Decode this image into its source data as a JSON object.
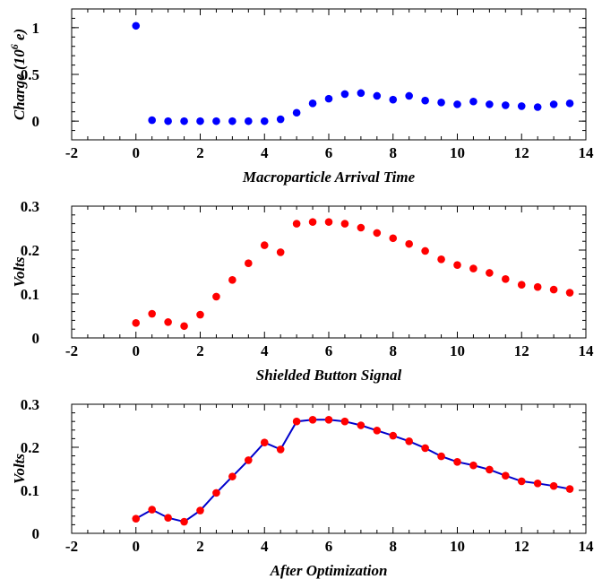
{
  "chart_data": [
    {
      "type": "scatter",
      "xlabel": "Macroparticle Arrival Time",
      "ylabel": "Charge (10",
      "ylabel_sup": "6",
      "ylabel_tail": " e)",
      "xlim": [
        -2,
        14
      ],
      "ylim": [
        -0.2,
        1.2
      ],
      "xticks": [
        -2,
        0,
        2,
        4,
        6,
        8,
        10,
        12,
        14
      ],
      "yticks": [
        0,
        0.5,
        1
      ],
      "grid": false,
      "colors": {
        "marker": "#0000ff"
      },
      "series": [
        {
          "x": [
            0,
            0.5,
            1,
            1.5,
            2,
            2.5,
            3,
            3.5,
            4,
            4.5,
            5,
            5.5,
            6,
            6.5,
            7,
            7.5,
            8,
            8.5,
            9,
            9.5,
            10,
            10.5,
            11,
            11.5,
            12,
            12.5,
            13,
            13.5
          ],
          "y": [
            1.02,
            0.01,
            0.0,
            0.0,
            0.0,
            0.0,
            0.0,
            0.0,
            0.0,
            0.02,
            0.09,
            0.19,
            0.24,
            0.29,
            0.3,
            0.27,
            0.23,
            0.27,
            0.22,
            0.2,
            0.18,
            0.21,
            0.18,
            0.17,
            0.16,
            0.15,
            0.18,
            0.19
          ]
        }
      ]
    },
    {
      "type": "scatter",
      "xlabel": "Shielded Button Signal",
      "ylabel": "Volts",
      "xlim": [
        -2,
        14
      ],
      "ylim": [
        0,
        0.3
      ],
      "xticks": [
        -2,
        0,
        2,
        4,
        6,
        8,
        10,
        12,
        14
      ],
      "yticks": [
        0,
        0.1,
        0.2,
        0.3
      ],
      "grid": false,
      "colors": {
        "marker": "#ff0000"
      },
      "series": [
        {
          "x": [
            0,
            0.5,
            1,
            1.5,
            2,
            2.5,
            3,
            3.5,
            4,
            4.5,
            5,
            5.5,
            6,
            6.5,
            7,
            7.5,
            8,
            8.5,
            9,
            9.5,
            10,
            10.5,
            11,
            11.5,
            12,
            12.5,
            13,
            13.5
          ],
          "y": [
            0.034,
            0.055,
            0.036,
            0.027,
            0.053,
            0.094,
            0.132,
            0.17,
            0.211,
            0.195,
            0.26,
            0.264,
            0.264,
            0.26,
            0.251,
            0.239,
            0.227,
            0.214,
            0.198,
            0.179,
            0.166,
            0.158,
            0.148,
            0.134,
            0.121,
            0.116,
            0.11,
            0.103
          ]
        }
      ]
    },
    {
      "type": "line",
      "xlabel": "After Optimization",
      "ylabel": "Volts",
      "xlim": [
        -2,
        14
      ],
      "ylim": [
        0,
        0.3
      ],
      "xticks": [
        -2,
        0,
        2,
        4,
        6,
        8,
        10,
        12,
        14
      ],
      "yticks": [
        0,
        0.1,
        0.2,
        0.3
      ],
      "grid": false,
      "colors": {
        "marker": "#ff0000",
        "line": "#0000cc"
      },
      "series": [
        {
          "x": [
            0,
            0.5,
            1,
            1.5,
            2,
            2.5,
            3,
            3.5,
            4,
            4.5,
            5,
            5.5,
            6,
            6.5,
            7,
            7.5,
            8,
            8.5,
            9,
            9.5,
            10,
            10.5,
            11,
            11.5,
            12,
            12.5,
            13,
            13.5
          ],
          "y": [
            0.034,
            0.055,
            0.036,
            0.027,
            0.053,
            0.094,
            0.132,
            0.17,
            0.211,
            0.195,
            0.26,
            0.264,
            0.264,
            0.26,
            0.251,
            0.239,
            0.227,
            0.214,
            0.198,
            0.179,
            0.166,
            0.158,
            0.148,
            0.134,
            0.121,
            0.116,
            0.11,
            0.103
          ]
        }
      ]
    }
  ]
}
